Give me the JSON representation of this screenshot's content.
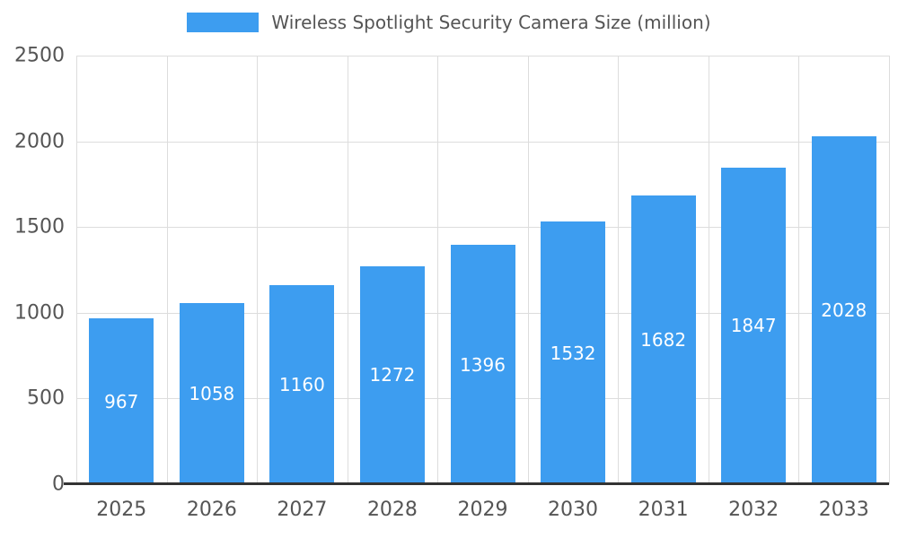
{
  "chart_data": {
    "type": "bar",
    "title": "Wireless Spotlight Security Camera Size (million)",
    "categories": [
      "2025",
      "2026",
      "2027",
      "2028",
      "2029",
      "2030",
      "2031",
      "2032",
      "2033"
    ],
    "values": [
      967,
      1058,
      1160,
      1272,
      1396,
      1532,
      1682,
      1847,
      2028
    ],
    "xlabel": "",
    "ylabel": "",
    "ylim": [
      0,
      2500
    ],
    "ytick_step": 500,
    "yticks": [
      0,
      500,
      1000,
      1500,
      2000,
      2500
    ],
    "grid": true,
    "legend_position": "top",
    "value_labels_inside_bars": true,
    "colors": {
      "bar": "#3D9DF0",
      "value_label": "#FFFFFF",
      "axis_text": "#555555",
      "gridline": "#DDDDDD",
      "axis_line": "#333333",
      "background": "#FFFFFF"
    }
  }
}
